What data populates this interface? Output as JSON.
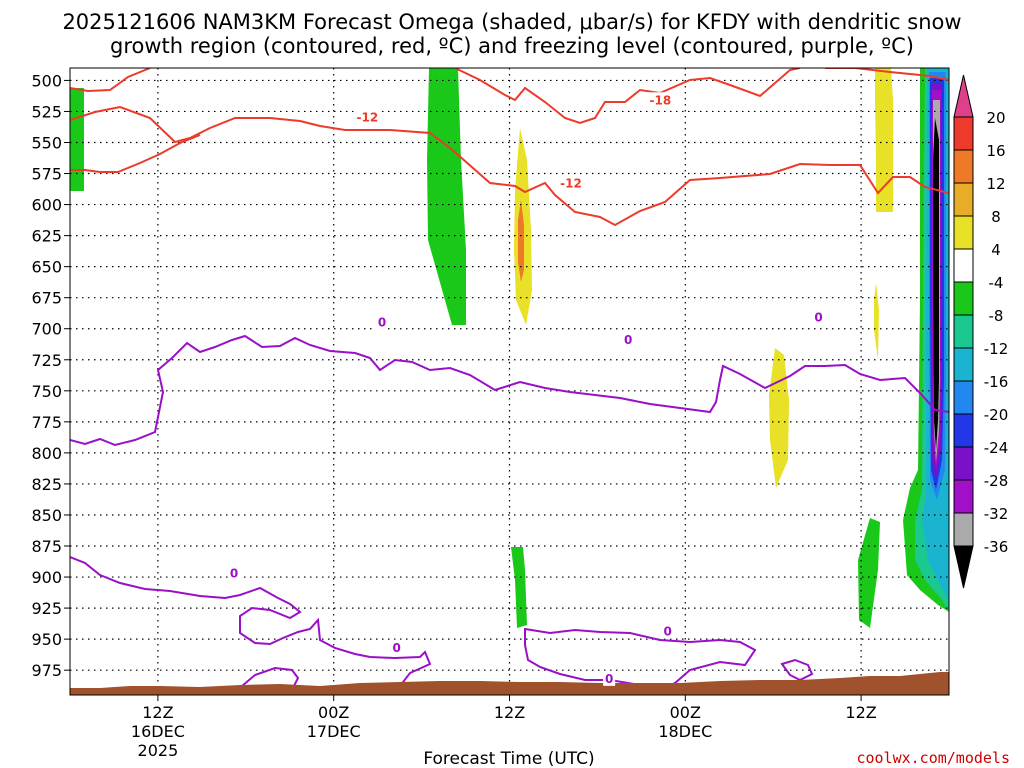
{
  "title_line1": "2025121606 NAM3KM Forecast Omega (shaded, μbar/s) for KFDY with dendritic snow",
  "title_line2": "growth region (contoured, red, ºC) and freezing level (contoured, purple, ºC)",
  "credit": "coolwx.com/models",
  "chart_data": {
    "type": "time-height cross section",
    "xlabel": "Forecast Time (UTC)",
    "ylabel": "",
    "x_ticks": [
      {
        "lines": [
          "12Z",
          "16DEC",
          "2025"
        ]
      },
      {
        "lines": [
          "00Z",
          "17DEC"
        ]
      },
      {
        "lines": [
          "12Z"
        ]
      },
      {
        "lines": [
          "00Z",
          "18DEC"
        ]
      },
      {
        "lines": [
          "12Z"
        ]
      }
    ],
    "x_tick_hours": [
      6,
      18,
      30,
      42,
      54
    ],
    "x_range_hours": [
      0,
      60
    ],
    "y_ticks": [
      500,
      525,
      550,
      575,
      600,
      625,
      650,
      675,
      700,
      725,
      750,
      775,
      800,
      825,
      850,
      875,
      900,
      925,
      950,
      975
    ],
    "y_range_hPa": [
      490,
      995
    ],
    "grid": "dotted",
    "colorbar": {
      "units": "μbar/s",
      "labels": [
        "20",
        "16",
        "12",
        "8",
        "4",
        "-4",
        "-8",
        "-12",
        "-16",
        "-20",
        "-24",
        "-28",
        "-32",
        "-36"
      ],
      "colors": [
        "#e0408a",
        "#ee3a2a",
        "#ee7a28",
        "#e9ac28",
        "#e9e028",
        "#ffffff",
        "#1ac81a",
        "#1ac890",
        "#1ab4d0",
        "#2288f0",
        "#2238e8",
        "#7a10c8",
        "#a010c8",
        "#aaaaaa",
        "#000000"
      ]
    },
    "contour_labels": [
      {
        "text": "-18",
        "color": "#ee3a2a",
        "hour": 40.3,
        "p": 516
      },
      {
        "text": "-12",
        "color": "#ee3a2a",
        "hour": 20.3,
        "p": 530
      },
      {
        "text": "-12",
        "color": "#ee3a2a",
        "hour": 34.2,
        "p": 583
      },
      {
        "text": "0",
        "color": "#9a10c8",
        "hour": 21.3,
        "p": 695
      },
      {
        "text": "0",
        "color": "#9a10c8",
        "hour": 38.1,
        "p": 709
      },
      {
        "text": "0",
        "color": "#9a10c8",
        "hour": 51.1,
        "p": 691
      },
      {
        "text": "0",
        "color": "#9a10c8",
        "hour": 11.2,
        "p": 897
      },
      {
        "text": "0",
        "color": "#9a10c8",
        "hour": 22.3,
        "p": 957
      },
      {
        "text": "0",
        "color": "#9a10c8",
        "hour": 40.8,
        "p": 944
      },
      {
        "text": "0",
        "color": "#9a10c8",
        "hour": 36.8,
        "p": 982
      }
    ]
  }
}
